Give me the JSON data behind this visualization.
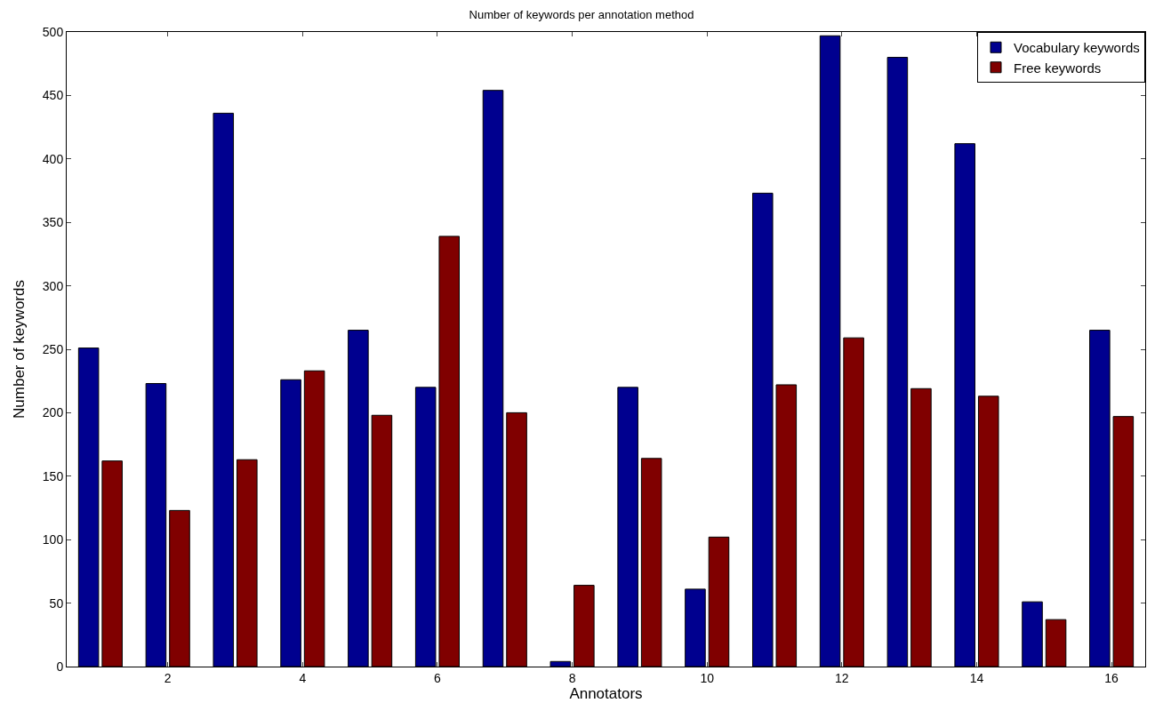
{
  "chart_data": {
    "type": "bar",
    "title": "Number of keywords per annotation method",
    "xlabel": "Annotators",
    "ylabel": "Number of keywords",
    "x": [
      1,
      2,
      3,
      4,
      5,
      6,
      7,
      8,
      9,
      10,
      11,
      12,
      13,
      14,
      15,
      16
    ],
    "series": [
      {
        "name": "Vocabulary keywords",
        "color": "#00008f",
        "values": [
          251,
          223,
          436,
          226,
          265,
          220,
          454,
          4,
          220,
          61,
          373,
          497,
          480,
          412,
          51,
          265
        ]
      },
      {
        "name": "Free keywords",
        "color": "#800000",
        "values": [
          162,
          123,
          163,
          233,
          198,
          339,
          200,
          64,
          164,
          102,
          222,
          259,
          219,
          213,
          37,
          197
        ]
      }
    ],
    "xlim": [
      0.5,
      16.5
    ],
    "xticks": [
      2,
      4,
      6,
      8,
      10,
      12,
      14,
      16
    ],
    "ylim": [
      0,
      500
    ],
    "yticks": [
      0,
      50,
      100,
      150,
      200,
      250,
      300,
      350,
      400,
      450,
      500
    ],
    "grid": false,
    "legend": "top right"
  }
}
